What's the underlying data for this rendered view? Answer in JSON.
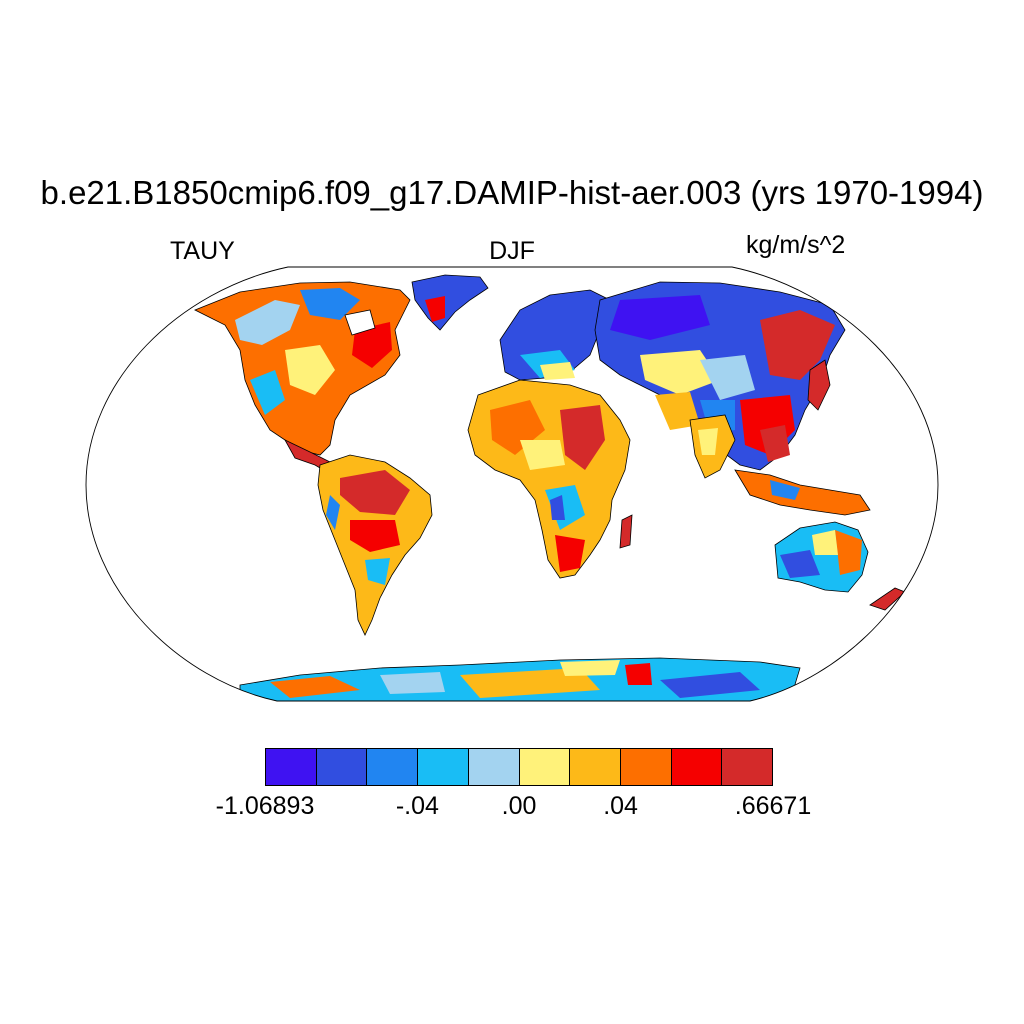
{
  "title": "b.e21.B1850cmip6.f09_g17.DAMIP-hist-aer.003 (yrs 1970-1994)",
  "left_label": "TAUY",
  "center_label": "DJF",
  "right_label": "kg/m/s^2",
  "colorbar": {
    "colors": [
      "#3f12f2",
      "#314ee0",
      "#2185f1",
      "#19bdf5",
      "#a3d3f0",
      "#fff27a",
      "#fdb918",
      "#fd6f00",
      "#f50000",
      "#d42a2a"
    ],
    "tick_labels": [
      "-1.06893",
      "-.04",
      ".00",
      ".04",
      ".66671"
    ]
  },
  "map": {
    "projection": "Robinson",
    "fill": "land only",
    "ocean_color": "#ffffff"
  }
}
